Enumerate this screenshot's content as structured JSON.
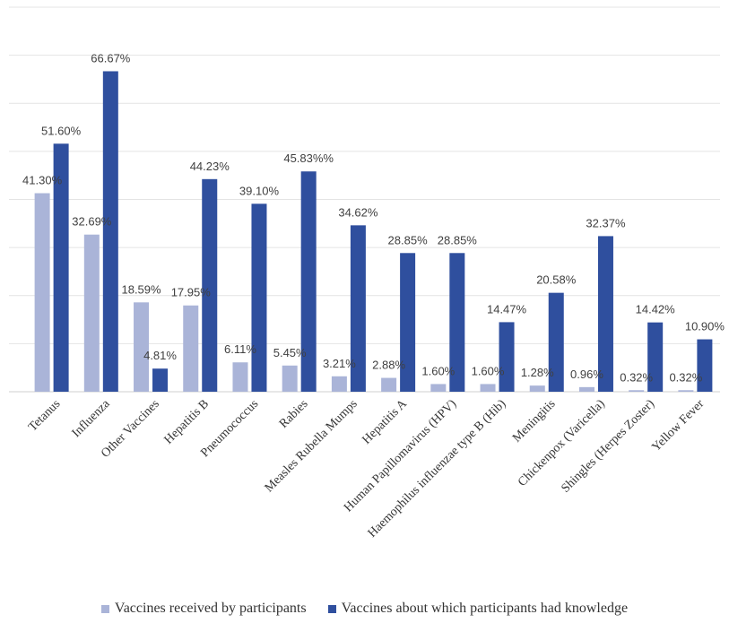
{
  "chart_data": {
    "type": "bar",
    "categories": [
      "Tetanus",
      "Influenza",
      "Other Vaccines",
      "Hepatitis B",
      "Pneumococcus",
      "Rabies",
      "Measles Rubella Mumps",
      "Hepatitis A",
      "Human Papillomavirus (HPV)",
      "Haemophilus influenzae type B (Hib)",
      "Meningitis",
      "Chickenpox (Varicella)",
      "Shingles (Herpes Zoster)",
      "Yellow Fever"
    ],
    "series": [
      {
        "name": "Vaccines received by participants",
        "color": "#aab4d8",
        "values": [
          41.3,
          32.69,
          18.59,
          17.95,
          6.11,
          5.45,
          3.21,
          2.88,
          1.6,
          1.6,
          1.28,
          0.96,
          0.32,
          0.32
        ],
        "labels": [
          "41.30%",
          "32.69%",
          "18.59%",
          "17.95%",
          "6.11%",
          "5.45%",
          "3.21%",
          "2.88%",
          "1.60%",
          "1.60%",
          "1.28%",
          "0.96%",
          "0.32%",
          "0.32%"
        ]
      },
      {
        "name": "Vaccines about which participants had knowledge",
        "color": "#2f4f9e",
        "values": [
          51.6,
          66.67,
          4.81,
          44.23,
          39.1,
          45.83,
          34.62,
          28.85,
          28.85,
          14.47,
          20.58,
          32.37,
          14.42,
          10.9
        ],
        "labels": [
          "51.60%",
          "66.67%",
          "4.81%",
          "44.23%",
          "39.10%",
          "45.83%%",
          "34.62%",
          "28.85%",
          "28.85%",
          "14.47%",
          "20.58%",
          "32.37%",
          "14.42%",
          "10.90%"
        ]
      }
    ],
    "ylim": [
      0,
      80
    ],
    "grid": true,
    "legend": "bottom"
  }
}
